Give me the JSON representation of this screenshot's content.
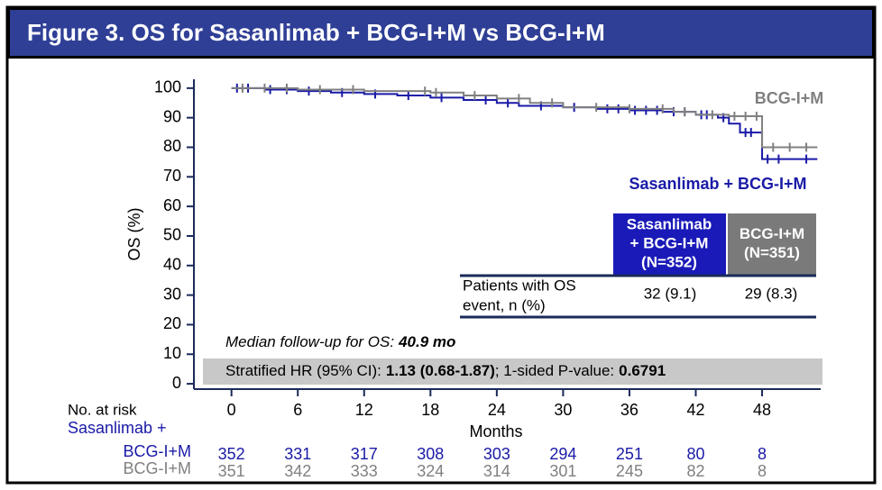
{
  "title": "Figure 3. OS for Sasanlimab + BCG-I+M vs BCG-I+M",
  "chart_data": {
    "type": "line",
    "step": true,
    "y_label": "OS (%)",
    "x_label": "Months",
    "xlim": [
      -3.4,
      53.3
    ],
    "ylim": [
      -1.8,
      103
    ],
    "xticks": [
      0,
      6,
      12,
      18,
      24,
      30,
      36,
      42,
      48
    ],
    "yticks": [
      0,
      10,
      20,
      30,
      40,
      50,
      60,
      70,
      80,
      90,
      100
    ],
    "series": [
      {
        "name": "Sasanlimab + BCG-I+M",
        "color": "#1a1aa8",
        "x": [
          0,
          3,
          6,
          9,
          12,
          15,
          18,
          21,
          24,
          26,
          30,
          33,
          36,
          39,
          42,
          44,
          45,
          46,
          48,
          53
        ],
        "values": [
          100,
          99.5,
          99,
          98.5,
          98,
          97.5,
          96.8,
          96,
          95,
          94,
          93.5,
          93,
          92.5,
          92,
          91,
          90,
          88,
          85,
          76,
          76
        ],
        "censored": [
          0.5,
          1.5,
          3.5,
          5,
          7,
          10,
          13,
          16,
          19,
          23,
          25,
          28,
          31,
          34,
          35,
          36.5,
          37.5,
          38.5,
          40,
          41,
          42.5,
          43,
          44.5,
          46.5,
          47,
          48.5,
          49.5,
          52
        ]
      },
      {
        "name": "BCG-I+M",
        "color": "#808080",
        "x": [
          0,
          6,
          12,
          18,
          21,
          24,
          27,
          30,
          36,
          40,
          42,
          45,
          48,
          53
        ],
        "values": [
          100,
          99.5,
          99,
          98.5,
          97.5,
          96.5,
          95,
          93.5,
          93,
          92,
          91,
          90.5,
          80,
          80
        ],
        "censored": [
          1,
          3,
          5,
          8,
          11,
          17.5,
          18.5,
          22,
          26,
          29,
          33,
          36,
          39,
          41,
          43.5,
          45.5,
          46.5,
          47.5,
          49,
          50.5,
          52
        ]
      }
    ]
  },
  "table": {
    "headers": [
      [
        "Sasanlimab",
        "+ BCG-I+M",
        "(N=352)"
      ],
      [
        "BCG-I+M",
        "(N=351)"
      ]
    ],
    "row_label": [
      "Patients with OS",
      "event, n (%)"
    ],
    "cells": [
      "32 (9.1)",
      "29 (8.3)"
    ]
  },
  "median_followup": {
    "label": "Median follow-up for OS:",
    "value": "40.9 mo"
  },
  "hr": {
    "label": "Stratified HR (95% CI):",
    "value": "1.13 (0.68-1.87)",
    "p_label": "; 1-sided P-value:",
    "p_value": "0.6791"
  },
  "risk_table": {
    "title": "No. at risk",
    "groups": [
      {
        "label": [
          "Sasanlimab +",
          "BCG-I+M"
        ],
        "counts": [
          "352",
          "331",
          "317",
          "308",
          "303",
          "294",
          "251",
          "80",
          "8"
        ]
      },
      {
        "label": [
          "BCG-I+M"
        ],
        "counts": [
          "351",
          "342",
          "333",
          "324",
          "314",
          "301",
          "245",
          "82",
          "8"
        ]
      }
    ]
  }
}
